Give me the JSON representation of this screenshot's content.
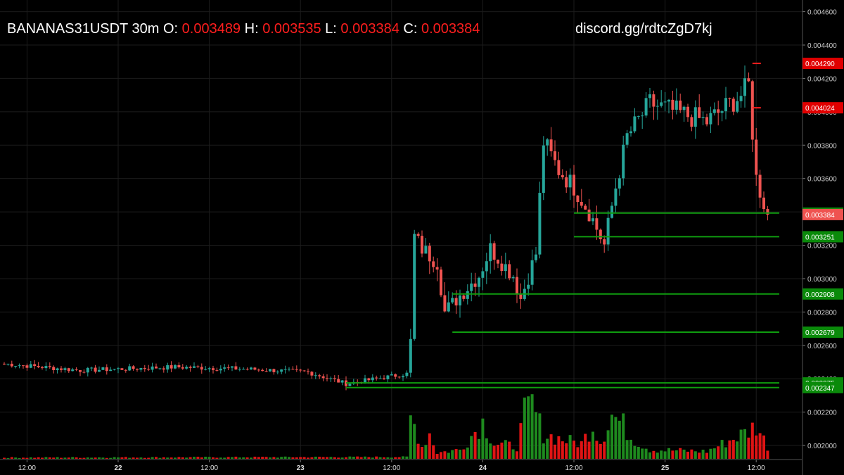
{
  "header": {
    "symbol": "BANANAS31USDT",
    "timeframe": "30m",
    "o_label": "O:",
    "o": "0.003489",
    "h_label": "H:",
    "h": "0.003535",
    "l_label": "L:",
    "l": "0.003384",
    "c_label": "C:",
    "c": "0.003384"
  },
  "discord": "discord.gg/rdtcZgD7kj",
  "colors": {
    "background": "#000000",
    "up": "#26a69a",
    "down": "#ef5350",
    "volume_up": "#1e8a1e",
    "volume_down": "#e01414",
    "level_green": "#0f9d0f",
    "level_red": "#ff1e1e",
    "header_value": "#ff1e1e"
  },
  "chart_data": {
    "type": "candlestick",
    "ylim": [
      0.00192,
      0.00467
    ],
    "y_ticks": [
      "0.002000",
      "0.002200",
      "0.002400",
      "0.002600",
      "0.002800",
      "0.003000",
      "0.003200",
      "0.003400",
      "0.003600",
      "0.003800",
      "0.004000",
      "0.004200",
      "0.004400",
      "0.004600"
    ],
    "x_ticks": [
      "12:00",
      "22",
      "12:00",
      "23",
      "12:00",
      "24",
      "12:00",
      "25",
      "12:00"
    ],
    "x_tick_index": [
      6,
      30,
      54,
      78,
      102,
      126,
      150,
      174,
      198
    ],
    "grid": true,
    "price_path": [
      [
        0,
        0.00249
      ],
      [
        20,
        0.00245
      ],
      [
        45,
        0.00247
      ],
      [
        62,
        0.00246
      ],
      [
        80,
        0.00244
      ],
      [
        90,
        0.00237
      ],
      [
        106,
        0.00243
      ],
      [
        107,
        0.00262
      ],
      [
        108,
        0.00325
      ],
      [
        110,
        0.00318
      ],
      [
        114,
        0.0031
      ],
      [
        116,
        0.0028
      ],
      [
        120,
        0.0029
      ],
      [
        125,
        0.00302
      ],
      [
        128,
        0.00318
      ],
      [
        134,
        0.00302
      ],
      [
        136,
        0.00288
      ],
      [
        140,
        0.00315
      ],
      [
        142,
        0.00382
      ],
      [
        146,
        0.00365
      ],
      [
        150,
        0.00355
      ],
      [
        154,
        0.0034
      ],
      [
        158,
        0.0032
      ],
      [
        161,
        0.00355
      ],
      [
        164,
        0.00385
      ],
      [
        170,
        0.00405
      ],
      [
        185,
        0.00394
      ],
      [
        194,
        0.0041
      ],
      [
        196,
        0.00416
      ],
      [
        198,
        0.0036
      ],
      [
        201,
        0.00338
      ]
    ],
    "candle_count": 202,
    "volume_path": [
      [
        0,
        0.02
      ],
      [
        106,
        0.03
      ],
      [
        107,
        0.65
      ],
      [
        108,
        0.55
      ],
      [
        110,
        0.2
      ],
      [
        112,
        0.42
      ],
      [
        114,
        0.1
      ],
      [
        120,
        0.15
      ],
      [
        124,
        0.45
      ],
      [
        126,
        0.6
      ],
      [
        129,
        0.25
      ],
      [
        135,
        0.2
      ],
      [
        137,
        0.72
      ],
      [
        139,
        0.88
      ],
      [
        142,
        0.4
      ],
      [
        148,
        0.3
      ],
      [
        152,
        0.25
      ],
      [
        155,
        0.55
      ],
      [
        157,
        0.28
      ],
      [
        160,
        0.72
      ],
      [
        163,
        0.55
      ],
      [
        165,
        0.35
      ],
      [
        170,
        0.15
      ],
      [
        185,
        0.12
      ],
      [
        196,
        0.45
      ],
      [
        198,
        0.55
      ],
      [
        201,
        0.2
      ]
    ],
    "levels": [
      {
        "label": "0.004290",
        "value": 0.00429,
        "color": "red",
        "x_start": 197
      },
      {
        "label": "0.004024",
        "value": 0.004024,
        "color": "red",
        "x_start": 197
      },
      {
        "label": "0.003393",
        "value": 0.003393,
        "color": "green",
        "x_start": 150
      },
      {
        "label": "0.003251",
        "value": 0.003251,
        "color": "green",
        "x_start": 150
      },
      {
        "label": "0.002908",
        "value": 0.002908,
        "color": "green",
        "x_start": 118
      },
      {
        "label": "0.002679",
        "value": 0.002679,
        "color": "green",
        "x_start": 118
      },
      {
        "label": "0.002375",
        "value": 0.002375,
        "color": "green",
        "x_start": 90
      },
      {
        "label": "0.002347",
        "value": 0.002347,
        "color": "green",
        "x_start": 90
      }
    ],
    "last_price": {
      "label": "0.003384",
      "value": 0.003384
    }
  }
}
